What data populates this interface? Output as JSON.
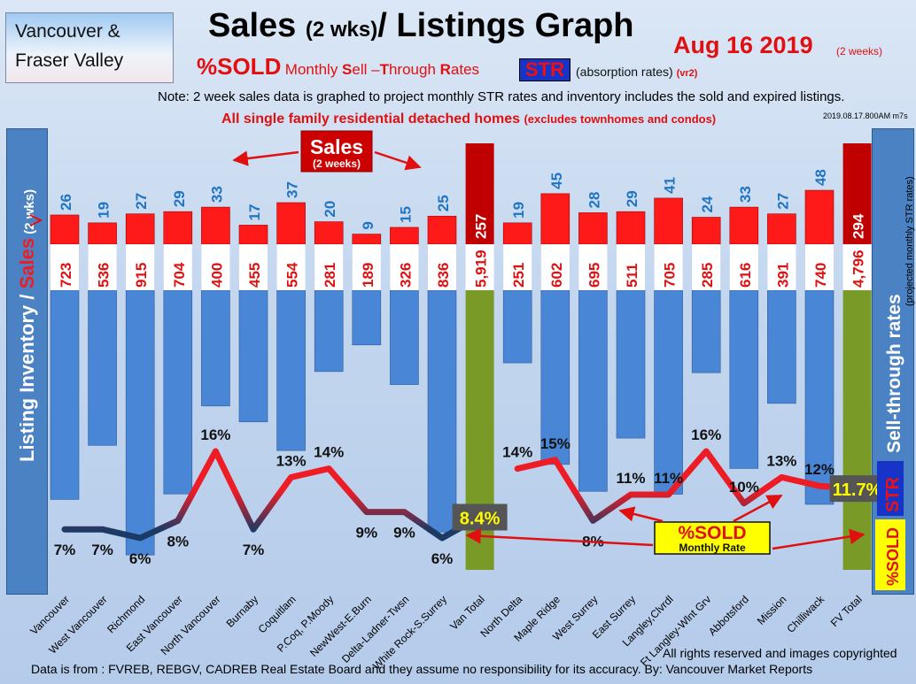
{
  "region": [
    "Vancouver &",
    "Fraser Valley"
  ],
  "title": "Sales",
  "title_small": "(2 wks)",
  "title_rest": "/ Listings Graph",
  "date": "Aug 16 2019",
  "date_sub": "(2 weeks)",
  "sold_label": "%SOLD",
  "monthly_prefix": "Monthly ",
  "sell_through": [
    {
      "big": "S",
      "rest": "ell –"
    },
    {
      "big": "T",
      "rest": "hrough "
    },
    {
      "big": "R",
      "rest": "ates"
    }
  ],
  "str_badge": "STR",
  "absorption": "(absorption rates)",
  "version": "(vr2)",
  "note": "Note: 2 week sales data is graphed to project monthly STR rates and inventory includes the sold and expired listings.",
  "subtitle_main": "All single family residential detached homes ",
  "subtitle_paren": "(excludes townhomes and condos)",
  "timestamp": "2019.08.17.800AM m7s",
  "left_axis": {
    "part1": "Listing Inventory / ",
    "part2": "Sales",
    "part3": " (2  wks)"
  },
  "right_axis": {
    "main": "Sell-through rates",
    "sub": "(projected monthly STR rates)",
    "str": "STR",
    "sold": "%SOLD"
  },
  "sales_callout": {
    "title": "Sales",
    "sub": "(2 weeks)"
  },
  "sold_callout": {
    "title": "%SOLD",
    "sub": "Monthly Rate"
  },
  "footer_rights": "All rights reserved and  images copyrighted",
  "footer_source": "Data is from : FVREB, REBGV, CADREB Real Estate Board and they assume no responsibility for its accuracy. By: Vancouver Market Reports",
  "colors": {
    "sales_bar": "#ff1a1a",
    "inventory_bar": "#4a86d6",
    "total_bar": "#7a9a28",
    "total_sales_bar": "#c00000",
    "line_high": "#ee1c24",
    "line_low": "#1b3a66"
  },
  "chart_data": {
    "type": "bar",
    "categories": [
      "Vancouver",
      "West Vancouver",
      "Richmond",
      "East Vancouver",
      "North Vancouver",
      "Burnaby",
      "Coquitlam",
      "P.Coq, P.Moody",
      "NewWest-E.Burn",
      "Delta-Ladner-Twsn",
      "White Rock-S.Surrey",
      "Van Total",
      "North Delta",
      "Maple Ridge",
      "West Surrey",
      "East Surrey",
      "Langley,Clvrdl",
      "Ft Langley-Wlnt Grv",
      "Abbotsford",
      "Mission",
      "Chilliwack",
      "FV Total"
    ],
    "series": [
      {
        "name": "Sales",
        "values": [
          26,
          19,
          27,
          29,
          33,
          17,
          37,
          20,
          9,
          15,
          25,
          257,
          19,
          45,
          28,
          29,
          41,
          24,
          33,
          27,
          48,
          294
        ]
      },
      {
        "name": "Listing Inventory",
        "values": [
          723,
          536,
          915,
          704,
          400,
          455,
          554,
          281,
          189,
          326,
          836,
          5919,
          251,
          602,
          695,
          511,
          705,
          285,
          616,
          391,
          740,
          4796
        ]
      },
      {
        "name": "%SOLD",
        "type": "line",
        "values": [
          7,
          7,
          6,
          8,
          16,
          7,
          13,
          14,
          9,
          9,
          6,
          8.4,
          14,
          15,
          8,
          11,
          11,
          16,
          10,
          13,
          12,
          11.7
        ]
      }
    ],
    "value_labels": {
      "sales": [
        "26",
        "19",
        "27",
        "29",
        "33",
        "17",
        "37",
        "20",
        "9",
        "15",
        "25",
        "257",
        "19",
        "45",
        "28",
        "29",
        "41",
        "24",
        "33",
        "27",
        "48",
        "294"
      ],
      "inventory": [
        "723",
        "536",
        "915",
        "704",
        "400",
        "455",
        "554",
        "281",
        "189",
        "326",
        "836",
        "5,919",
        "251",
        "602",
        "695",
        "511",
        "705",
        "285",
        "616",
        "391",
        "740",
        "4,796"
      ],
      "pct": [
        "7%",
        "7%",
        "6%",
        "8%",
        "16%",
        "7%",
        "13%",
        "14%",
        "9%",
        "9%",
        "6%",
        "8.4%",
        "14%",
        "15%",
        "8%",
        "11%",
        "11%",
        "16%",
        "10%",
        "13%",
        "12%",
        "11.7%"
      ]
    },
    "total_indices": [
      11,
      21
    ]
  }
}
